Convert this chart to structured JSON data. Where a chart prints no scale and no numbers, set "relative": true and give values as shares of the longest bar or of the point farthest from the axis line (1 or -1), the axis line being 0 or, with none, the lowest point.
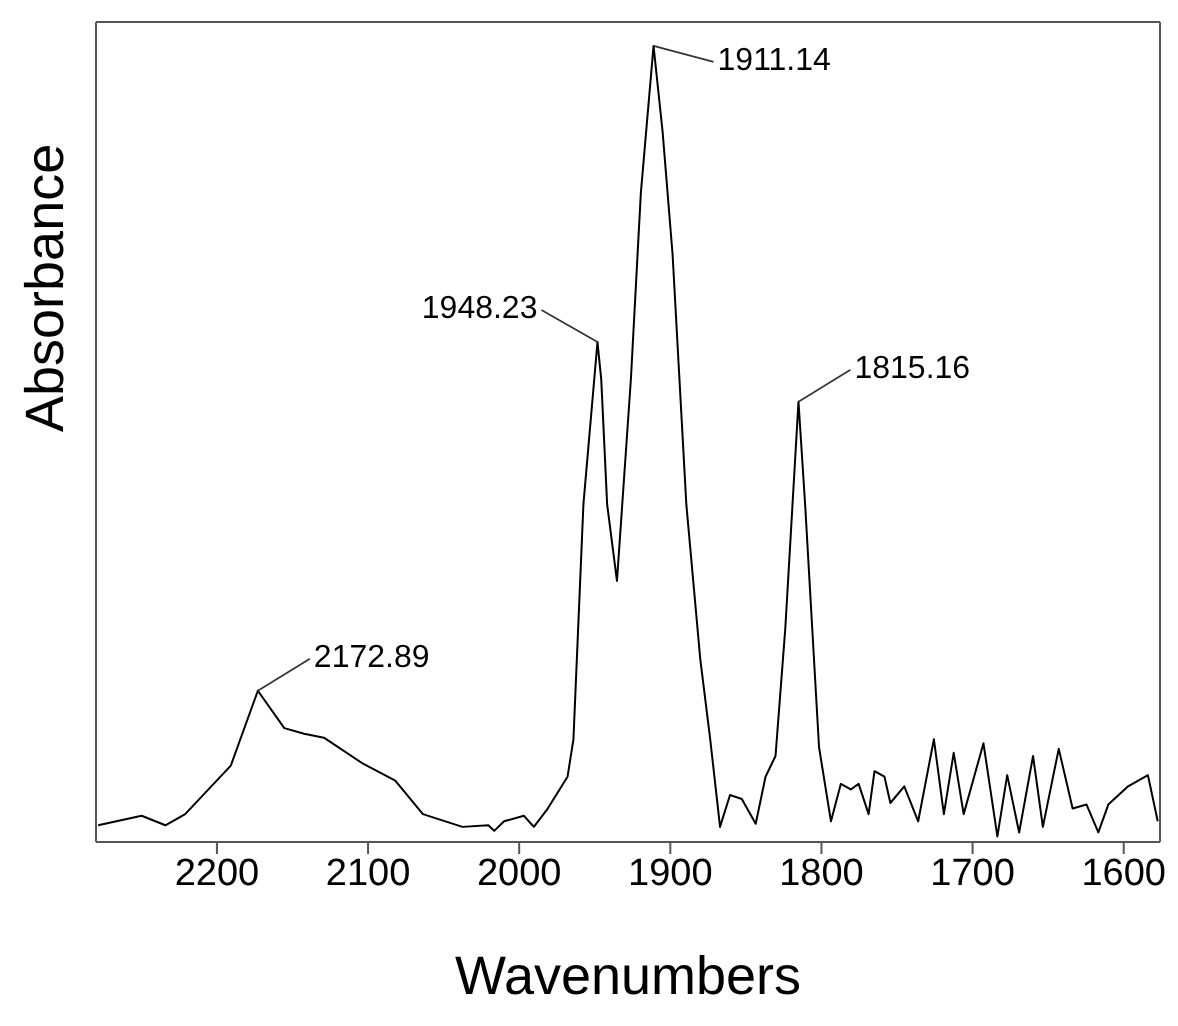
{
  "chart_data": {
    "type": "line",
    "xlabel": "Wavenumbers",
    "ylabel": "Absorbance",
    "relative": true,
    "xlim": [
      2280,
      1576
    ],
    "xticks": [
      2200,
      2100,
      2000,
      1900,
      1800,
      1700,
      1600
    ],
    "marker": "none",
    "line_style": "solid",
    "x": [
      2278.6,
      2249.8,
      2234.1,
      2221.0,
      2190.8,
      2172.9,
      2155.4,
      2142.3,
      2129.2,
      2103.0,
      2082.0,
      2063.7,
      2037.5,
      2020.4,
      2016.5,
      2010.0,
      1996.9,
      1990.3,
      1981.1,
      1968.0,
      1964.1,
      1957.5,
      1948.2,
      1945.7,
      1941.8,
      1935.3,
      1926.1,
      1919.5,
      1911.1,
      1905.1,
      1898.5,
      1889.4,
      1880.2,
      1873.6,
      1867.1,
      1860.5,
      1852.7,
      1843.5,
      1837.0,
      1830.4,
      1823.9,
      1815.2,
      1810.8,
      1801.6,
      1793.7,
      1787.2,
      1780.6,
      1775.4,
      1768.8,
      1764.9,
      1758.3,
      1754.4,
      1745.2,
      1736.0,
      1725.6,
      1719.0,
      1712.5,
      1705.9,
      1692.8,
      1683.6,
      1677.1,
      1669.2,
      1660.0,
      1653.5,
      1643.0,
      1633.8,
      1624.6,
      1616.8,
      1610.2,
      1597.1,
      1584.0,
      1577.5
    ],
    "series": [
      {
        "color": "#000000",
        "values": [
          0.021,
          0.033,
          0.021,
          0.035,
          0.096,
          0.19,
          0.143,
          0.136,
          0.131,
          0.098,
          0.077,
          0.035,
          0.019,
          0.021,
          0.014,
          0.026,
          0.033,
          0.019,
          0.042,
          0.082,
          0.129,
          0.424,
          0.628,
          0.581,
          0.424,
          0.328,
          0.581,
          0.815,
          1,
          0.892,
          0.738,
          0.424,
          0.23,
          0.129,
          0.019,
          0.059,
          0.054,
          0.023,
          0.082,
          0.108,
          0.269,
          0.553,
          0.424,
          0.119,
          0.026,
          0.073,
          0.066,
          0.073,
          0.035,
          0.089,
          0.082,
          0.049,
          0.07,
          0.026,
          0.129,
          0.035,
          0.112,
          0.035,
          0.124,
          0.007,
          0.084,
          0.012,
          0.108,
          0.019,
          0.117,
          0.042,
          0.047,
          0.012,
          0.047,
          0.07,
          0.084,
          0.026
        ]
      }
    ],
    "annotations": [
      {
        "text": "2172.89",
        "x": 2172.9,
        "y": 0.19
      },
      {
        "text": "1948.23",
        "x": 1948.2,
        "y": 0.628
      },
      {
        "text": "1911.14",
        "x": 1911.1,
        "y": 1
      },
      {
        "text": "1815.16",
        "x": 1815.2,
        "y": 0.553
      }
    ]
  }
}
